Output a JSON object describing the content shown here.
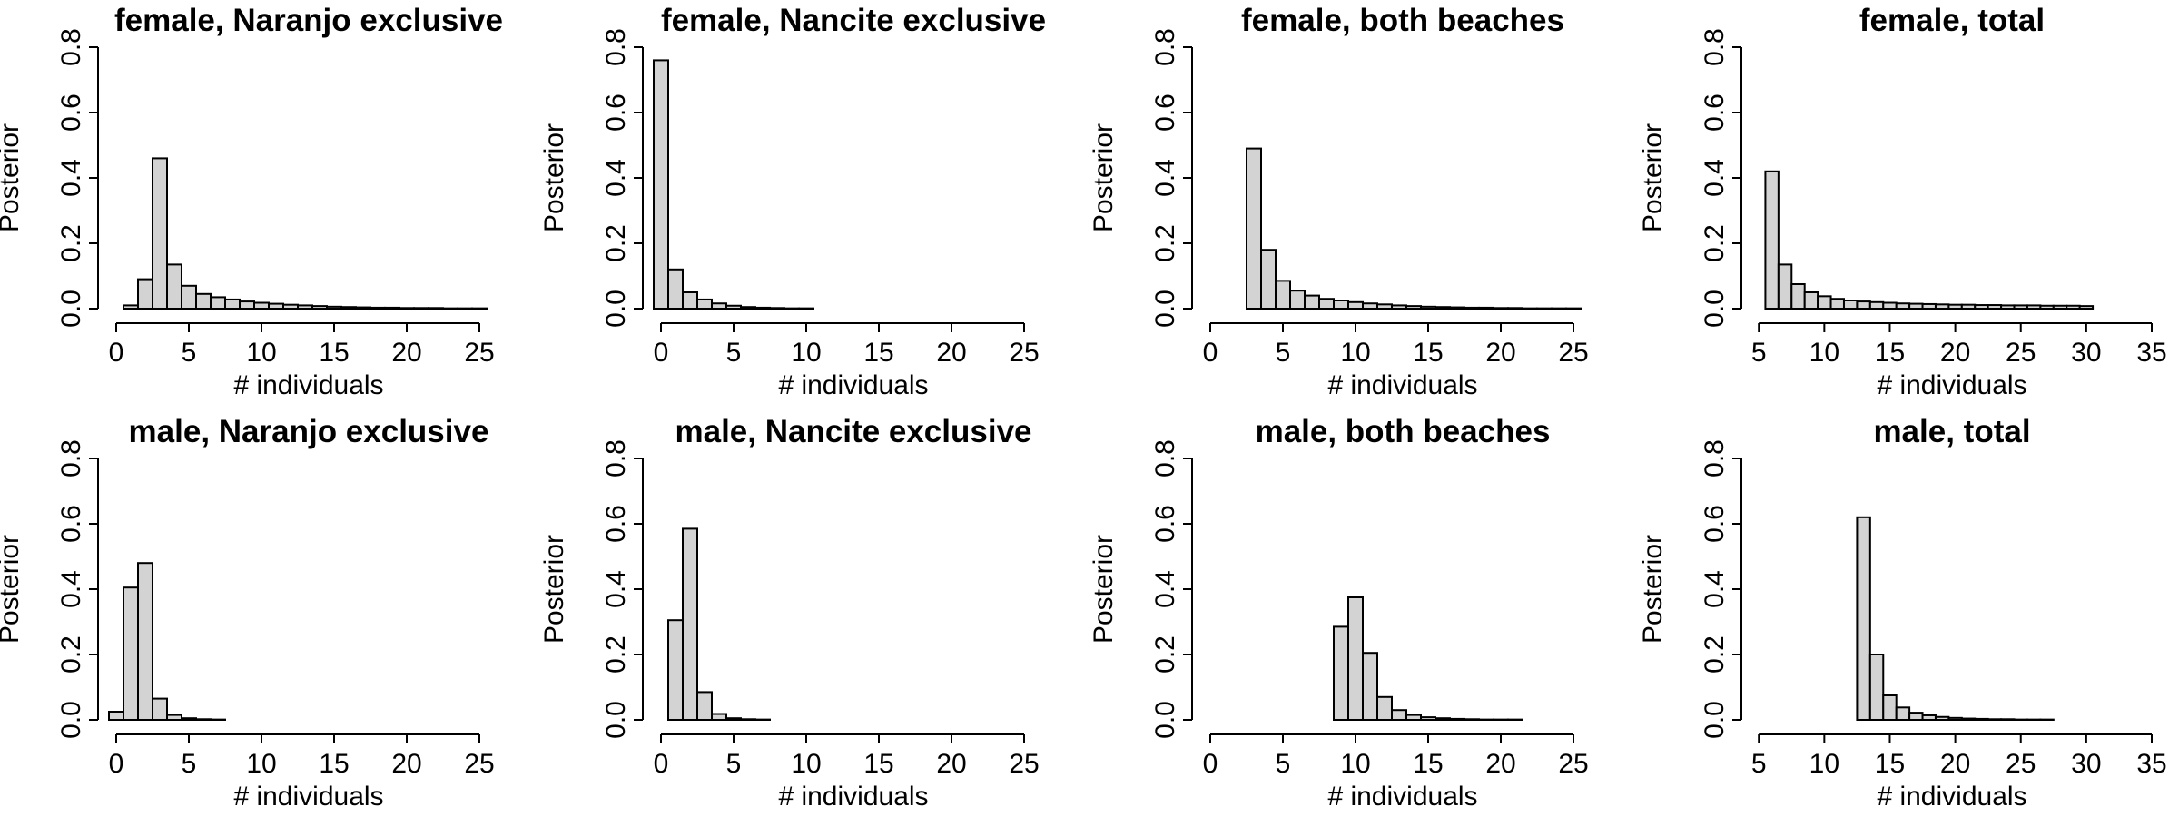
{
  "chart_data": [
    {
      "type": "bar",
      "title": "female, Naranjo exclusive",
      "xlabel": "# individuals",
      "ylabel": "Posterior",
      "xlim": [
        -0.5,
        27
      ],
      "ylim": [
        0,
        0.8
      ],
      "xticks": [
        0,
        5,
        10,
        15,
        20,
        25
      ],
      "yticks": [
        0.0,
        0.2,
        0.4,
        0.6,
        0.8
      ],
      "x": [
        0,
        1,
        2,
        3,
        4,
        5,
        6,
        7,
        8,
        9,
        10,
        11,
        12,
        13,
        14,
        15,
        16,
        17,
        18,
        19,
        20,
        21,
        22,
        23,
        24,
        25,
        26,
        27
      ],
      "values": [
        0.0,
        0.01,
        0.09,
        0.46,
        0.135,
        0.07,
        0.045,
        0.035,
        0.028,
        0.022,
        0.018,
        0.015,
        0.012,
        0.01,
        0.008,
        0.006,
        0.005,
        0.004,
        0.003,
        0.003,
        0.002,
        0.002,
        0.002,
        0.001,
        0.001,
        0.001,
        0.0,
        0.0
      ]
    },
    {
      "type": "bar",
      "title": "female, Nancite exclusive",
      "xlabel": "# individuals",
      "ylabel": "Posterior",
      "xlim": [
        -0.5,
        27
      ],
      "ylim": [
        0,
        0.8
      ],
      "xticks": [
        0,
        5,
        10,
        15,
        20,
        25
      ],
      "yticks": [
        0.0,
        0.2,
        0.4,
        0.6,
        0.8
      ],
      "x": [
        0,
        1,
        2,
        3,
        4,
        5,
        6,
        7,
        8,
        9,
        10,
        11,
        12,
        13,
        14,
        15,
        16,
        17,
        18,
        19,
        20,
        21,
        22,
        23,
        24,
        25,
        26
      ],
      "values": [
        0.76,
        0.12,
        0.05,
        0.028,
        0.016,
        0.009,
        0.005,
        0.003,
        0.002,
        0.001,
        0.001,
        0.0,
        0.0,
        0.0,
        0.0,
        0.0,
        0.0,
        0.0,
        0.0,
        0.0,
        0.0,
        0.0,
        0.0,
        0.0,
        0.0,
        0.0,
        0.0
      ]
    },
    {
      "type": "bar",
      "title": "female, both beaches",
      "xlabel": "# individuals",
      "ylabel": "Posterior",
      "xlim": [
        -0.5,
        27
      ],
      "ylim": [
        0,
        0.8
      ],
      "xticks": [
        0,
        5,
        10,
        15,
        20,
        25
      ],
      "yticks": [
        0.0,
        0.2,
        0.4,
        0.6,
        0.8
      ],
      "x": [
        3,
        4,
        5,
        6,
        7,
        8,
        9,
        10,
        11,
        12,
        13,
        14,
        15,
        16,
        17,
        18,
        19,
        20,
        21,
        22,
        23,
        24,
        25,
        26,
        27
      ],
      "values": [
        0.49,
        0.18,
        0.085,
        0.055,
        0.04,
        0.03,
        0.025,
        0.02,
        0.016,
        0.013,
        0.01,
        0.008,
        0.006,
        0.005,
        0.004,
        0.003,
        0.003,
        0.002,
        0.002,
        0.001,
        0.001,
        0.001,
        0.001,
        0.0,
        0.0
      ]
    },
    {
      "type": "bar",
      "title": "female, total",
      "xlabel": "# individuals",
      "ylabel": "Posterior",
      "xlim": [
        4.5,
        35
      ],
      "ylim": [
        0,
        0.8
      ],
      "xticks": [
        5,
        10,
        15,
        20,
        25,
        30,
        35
      ],
      "yticks": [
        0.0,
        0.2,
        0.4,
        0.6,
        0.8
      ],
      "x": [
        6,
        7,
        8,
        9,
        10,
        11,
        12,
        13,
        14,
        15,
        16,
        17,
        18,
        19,
        20,
        21,
        22,
        23,
        24,
        25,
        26,
        27,
        28,
        29,
        30
      ],
      "values": [
        0.42,
        0.135,
        0.075,
        0.05,
        0.038,
        0.03,
        0.025,
        0.022,
        0.02,
        0.018,
        0.016,
        0.015,
        0.014,
        0.013,
        0.012,
        0.012,
        0.011,
        0.011,
        0.01,
        0.01,
        0.01,
        0.009,
        0.009,
        0.009,
        0.008
      ]
    },
    {
      "type": "bar",
      "title": "male, Naranjo exclusive",
      "xlabel": "# individuals",
      "ylabel": "Posterior",
      "xlim": [
        -0.5,
        27
      ],
      "ylim": [
        0,
        0.8
      ],
      "xticks": [
        0,
        5,
        10,
        15,
        20,
        25
      ],
      "yticks": [
        0.0,
        0.2,
        0.4,
        0.6,
        0.8
      ],
      "x": [
        0,
        1,
        2,
        3,
        4,
        5,
        6,
        7,
        8,
        9,
        10,
        11,
        12,
        13,
        14,
        15,
        16,
        17,
        18,
        19,
        20,
        21,
        22,
        23,
        24,
        25,
        26,
        27
      ],
      "values": [
        0.025,
        0.405,
        0.48,
        0.065,
        0.015,
        0.005,
        0.002,
        0.001,
        0.0,
        0.0,
        0.0,
        0.0,
        0.0,
        0.0,
        0.0,
        0.0,
        0.0,
        0.0,
        0.0,
        0.0,
        0.0,
        0.0,
        0.0,
        0.0,
        0.0,
        0.0,
        0.0,
        0.0
      ]
    },
    {
      "type": "bar",
      "title": "male, Nancite exclusive",
      "xlabel": "# individuals",
      "ylabel": "Posterior",
      "xlim": [
        -0.5,
        27
      ],
      "ylim": [
        0,
        0.8
      ],
      "xticks": [
        0,
        5,
        10,
        15,
        20,
        25
      ],
      "yticks": [
        0.0,
        0.2,
        0.4,
        0.6,
        0.8
      ],
      "x": [
        0,
        1,
        2,
        3,
        4,
        5,
        6,
        7,
        8,
        9,
        10,
        11,
        12,
        13,
        14,
        15,
        16,
        17,
        18,
        19,
        20,
        21,
        22,
        23,
        24,
        25,
        26,
        27
      ],
      "values": [
        0.0,
        0.305,
        0.585,
        0.085,
        0.018,
        0.005,
        0.002,
        0.001,
        0.0,
        0.0,
        0.0,
        0.0,
        0.0,
        0.0,
        0.0,
        0.0,
        0.0,
        0.0,
        0.0,
        0.0,
        0.0,
        0.0,
        0.0,
        0.0,
        0.0,
        0.0,
        0.0,
        0.0
      ]
    },
    {
      "type": "bar",
      "title": "male, both beaches",
      "xlabel": "# individuals",
      "ylabel": "Posterior",
      "xlim": [
        -0.5,
        27
      ],
      "ylim": [
        0,
        0.8
      ],
      "xticks": [
        0,
        5,
        10,
        15,
        20,
        25
      ],
      "yticks": [
        0.0,
        0.2,
        0.4,
        0.6,
        0.8
      ],
      "x": [
        0,
        1,
        2,
        3,
        4,
        5,
        6,
        7,
        8,
        9,
        10,
        11,
        12,
        13,
        14,
        15,
        16,
        17,
        18,
        19,
        20,
        21,
        22,
        23,
        24,
        25,
        26,
        27
      ],
      "values": [
        0.0,
        0.0,
        0.0,
        0.0,
        0.0,
        0.0,
        0.0,
        0.0,
        0.0,
        0.285,
        0.375,
        0.205,
        0.07,
        0.03,
        0.015,
        0.008,
        0.005,
        0.003,
        0.002,
        0.001,
        0.001,
        0.001,
        0.0,
        0.0,
        0.0,
        0.0,
        0.0,
        0.0
      ]
    },
    {
      "type": "bar",
      "title": "male, total",
      "xlabel": "# individuals",
      "ylabel": "Posterior",
      "xlim": [
        4.5,
        35
      ],
      "ylim": [
        0,
        0.8
      ],
      "xticks": [
        5,
        10,
        15,
        20,
        25,
        30,
        35
      ],
      "yticks": [
        0.0,
        0.2,
        0.4,
        0.6,
        0.8
      ],
      "x": [
        5,
        6,
        7,
        8,
        9,
        10,
        11,
        12,
        13,
        14,
        15,
        16,
        17,
        18,
        19,
        20,
        21,
        22,
        23,
        24,
        25,
        26,
        27,
        28,
        29,
        30,
        31,
        32,
        33,
        34
      ],
      "values": [
        0.0,
        0.0,
        0.0,
        0.0,
        0.0,
        0.0,
        0.0,
        0.0,
        0.62,
        0.2,
        0.075,
        0.038,
        0.022,
        0.014,
        0.009,
        0.006,
        0.004,
        0.003,
        0.002,
        0.002,
        0.001,
        0.001,
        0.001,
        0.0,
        0.0,
        0.0,
        0.0,
        0.0,
        0.0,
        0.0
      ]
    }
  ],
  "colors": {
    "bar_fill": "#d3d3d3",
    "bar_stroke": "#000000",
    "axis": "#000000"
  }
}
